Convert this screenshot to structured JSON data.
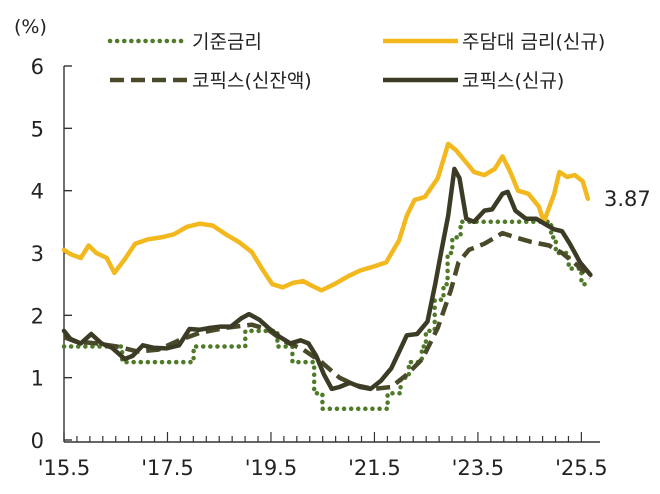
{
  "chart_data": {
    "type": "line",
    "ylabel": "(%)",
    "ylim": [
      0,
      6
    ],
    "yticks": [
      "0",
      "1",
      "2",
      "3",
      "4",
      "5",
      "6"
    ],
    "xlim": [
      2015.375,
      2025.58
    ],
    "xticks": [
      {
        "label": "'15.5",
        "x": 2015.375
      },
      {
        "label": "'17.5",
        "x": 2017.375
      },
      {
        "label": "'19.5",
        "x": 2019.375
      },
      {
        "label": "'21.5",
        "x": 2021.375
      },
      {
        "label": "'23.5",
        "x": 2023.375
      },
      {
        "label": "'25.5",
        "x": 2025.375
      }
    ],
    "grid": false,
    "legend_position": "top",
    "end_label": "3.87",
    "series": [
      {
        "name": "기준금리",
        "color": "#4F7A28",
        "style": "dotted",
        "points": [
          [
            2015.375,
            1.5
          ],
          [
            2016.5,
            1.5
          ],
          [
            2016.5,
            1.25
          ],
          [
            2017.88,
            1.25
          ],
          [
            2017.88,
            1.5
          ],
          [
            2018.88,
            1.5
          ],
          [
            2018.88,
            1.75
          ],
          [
            2019.5,
            1.75
          ],
          [
            2019.5,
            1.5
          ],
          [
            2019.79,
            1.5
          ],
          [
            2019.79,
            1.25
          ],
          [
            2020.21,
            1.25
          ],
          [
            2020.21,
            0.75
          ],
          [
            2020.37,
            0.75
          ],
          [
            2020.37,
            0.5
          ],
          [
            2021.63,
            0.5
          ],
          [
            2021.63,
            0.75
          ],
          [
            2021.88,
            0.75
          ],
          [
            2021.88,
            1.0
          ],
          [
            2022.04,
            1.0
          ],
          [
            2022.04,
            1.25
          ],
          [
            2022.29,
            1.25
          ],
          [
            2022.29,
            1.5
          ],
          [
            2022.37,
            1.5
          ],
          [
            2022.37,
            1.75
          ],
          [
            2022.54,
            1.75
          ],
          [
            2022.54,
            2.25
          ],
          [
            2022.71,
            2.25
          ],
          [
            2022.71,
            2.5
          ],
          [
            2022.79,
            2.5
          ],
          [
            2022.79,
            3.0
          ],
          [
            2022.88,
            3.0
          ],
          [
            2022.88,
            3.25
          ],
          [
            2023.04,
            3.25
          ],
          [
            2023.04,
            3.5
          ],
          [
            2024.79,
            3.5
          ],
          [
            2024.79,
            3.25
          ],
          [
            2024.88,
            3.25
          ],
          [
            2024.88,
            3.0
          ],
          [
            2025.13,
            3.0
          ],
          [
            2025.13,
            2.75
          ],
          [
            2025.375,
            2.75
          ],
          [
            2025.375,
            2.5
          ],
          [
            2025.55,
            2.5
          ]
        ]
      },
      {
        "name": "주담대 금리(신규)",
        "color": "#F2B81E",
        "style": "solid",
        "points": [
          [
            2015.375,
            3.05
          ],
          [
            2015.5,
            2.98
          ],
          [
            2015.7,
            2.92
          ],
          [
            2015.85,
            3.12
          ],
          [
            2016.0,
            3.0
          ],
          [
            2016.2,
            2.92
          ],
          [
            2016.35,
            2.68
          ],
          [
            2016.55,
            2.9
          ],
          [
            2016.75,
            3.15
          ],
          [
            2017.0,
            3.22
          ],
          [
            2017.25,
            3.25
          ],
          [
            2017.5,
            3.3
          ],
          [
            2017.75,
            3.42
          ],
          [
            2018.0,
            3.47
          ],
          [
            2018.25,
            3.44
          ],
          [
            2018.5,
            3.3
          ],
          [
            2018.75,
            3.18
          ],
          [
            2019.0,
            3.02
          ],
          [
            2019.2,
            2.75
          ],
          [
            2019.4,
            2.5
          ],
          [
            2019.6,
            2.45
          ],
          [
            2019.8,
            2.52
          ],
          [
            2020.0,
            2.55
          ],
          [
            2020.15,
            2.48
          ],
          [
            2020.35,
            2.4
          ],
          [
            2020.6,
            2.5
          ],
          [
            2020.85,
            2.62
          ],
          [
            2021.1,
            2.72
          ],
          [
            2021.35,
            2.78
          ],
          [
            2021.6,
            2.85
          ],
          [
            2021.85,
            3.2
          ],
          [
            2022.0,
            3.6
          ],
          [
            2022.15,
            3.85
          ],
          [
            2022.35,
            3.9
          ],
          [
            2022.6,
            4.2
          ],
          [
            2022.8,
            4.75
          ],
          [
            2022.95,
            4.65
          ],
          [
            2023.1,
            4.5
          ],
          [
            2023.3,
            4.3
          ],
          [
            2023.5,
            4.25
          ],
          [
            2023.7,
            4.35
          ],
          [
            2023.85,
            4.55
          ],
          [
            2024.0,
            4.3
          ],
          [
            2024.15,
            4.0
          ],
          [
            2024.35,
            3.95
          ],
          [
            2024.55,
            3.75
          ],
          [
            2024.65,
            3.5
          ],
          [
            2024.85,
            3.95
          ],
          [
            2024.95,
            4.3
          ],
          [
            2025.1,
            4.22
          ],
          [
            2025.25,
            4.25
          ],
          [
            2025.4,
            4.15
          ],
          [
            2025.5,
            3.87
          ]
        ]
      },
      {
        "name": "코픽스(신잔액)",
        "color": "#4A4A2B",
        "style": "dashed",
        "points": [
          [
            2015.375,
            1.65
          ],
          [
            2015.6,
            1.58
          ],
          [
            2016.0,
            1.55
          ],
          [
            2016.4,
            1.5
          ],
          [
            2016.8,
            1.42
          ],
          [
            2017.2,
            1.45
          ],
          [
            2017.6,
            1.6
          ],
          [
            2018.0,
            1.72
          ],
          [
            2018.5,
            1.8
          ],
          [
            2019.0,
            1.85
          ],
          [
            2019.3,
            1.78
          ],
          [
            2019.6,
            1.6
          ],
          [
            2020.0,
            1.45
          ],
          [
            2020.35,
            1.25
          ],
          [
            2020.7,
            1.0
          ],
          [
            2021.0,
            0.88
          ],
          [
            2021.35,
            0.82
          ],
          [
            2021.7,
            0.85
          ],
          [
            2022.0,
            1.05
          ],
          [
            2022.3,
            1.3
          ],
          [
            2022.6,
            1.8
          ],
          [
            2022.85,
            2.4
          ],
          [
            2023.0,
            2.85
          ],
          [
            2023.2,
            3.05
          ],
          [
            2023.5,
            3.15
          ],
          [
            2023.85,
            3.32
          ],
          [
            2024.1,
            3.25
          ],
          [
            2024.4,
            3.18
          ],
          [
            2024.75,
            3.12
          ],
          [
            2025.0,
            3.0
          ],
          [
            2025.3,
            2.8
          ],
          [
            2025.55,
            2.6
          ]
        ]
      },
      {
        "name": "코픽스(신규)",
        "color": "#3C3C26",
        "style": "solid",
        "points": [
          [
            2015.375,
            1.75
          ],
          [
            2015.5,
            1.62
          ],
          [
            2015.7,
            1.55
          ],
          [
            2015.9,
            1.7
          ],
          [
            2016.1,
            1.55
          ],
          [
            2016.3,
            1.48
          ],
          [
            2016.55,
            1.3
          ],
          [
            2016.7,
            1.35
          ],
          [
            2016.9,
            1.52
          ],
          [
            2017.1,
            1.48
          ],
          [
            2017.35,
            1.47
          ],
          [
            2017.6,
            1.52
          ],
          [
            2017.8,
            1.78
          ],
          [
            2018.0,
            1.77
          ],
          [
            2018.2,
            1.8
          ],
          [
            2018.4,
            1.82
          ],
          [
            2018.6,
            1.82
          ],
          [
            2018.8,
            1.95
          ],
          [
            2018.95,
            2.02
          ],
          [
            2019.15,
            1.93
          ],
          [
            2019.35,
            1.78
          ],
          [
            2019.55,
            1.65
          ],
          [
            2019.75,
            1.55
          ],
          [
            2019.95,
            1.6
          ],
          [
            2020.1,
            1.55
          ],
          [
            2020.25,
            1.35
          ],
          [
            2020.4,
            1.05
          ],
          [
            2020.55,
            0.82
          ],
          [
            2020.7,
            0.85
          ],
          [
            2020.9,
            0.92
          ],
          [
            2021.1,
            0.85
          ],
          [
            2021.3,
            0.82
          ],
          [
            2021.5,
            0.95
          ],
          [
            2021.7,
            1.15
          ],
          [
            2021.9,
            1.5
          ],
          [
            2022.0,
            1.68
          ],
          [
            2022.2,
            1.7
          ],
          [
            2022.4,
            1.9
          ],
          [
            2022.55,
            2.5
          ],
          [
            2022.65,
            2.95
          ],
          [
            2022.8,
            3.6
          ],
          [
            2022.92,
            4.35
          ],
          [
            2023.02,
            4.2
          ],
          [
            2023.15,
            3.55
          ],
          [
            2023.3,
            3.5
          ],
          [
            2023.5,
            3.68
          ],
          [
            2023.65,
            3.7
          ],
          [
            2023.85,
            3.95
          ],
          [
            2023.95,
            3.98
          ],
          [
            2024.1,
            3.68
          ],
          [
            2024.3,
            3.55
          ],
          [
            2024.5,
            3.55
          ],
          [
            2024.7,
            3.45
          ],
          [
            2024.85,
            3.38
          ],
          [
            2025.0,
            3.35
          ],
          [
            2025.15,
            3.15
          ],
          [
            2025.35,
            2.85
          ],
          [
            2025.55,
            2.65
          ]
        ]
      }
    ]
  }
}
